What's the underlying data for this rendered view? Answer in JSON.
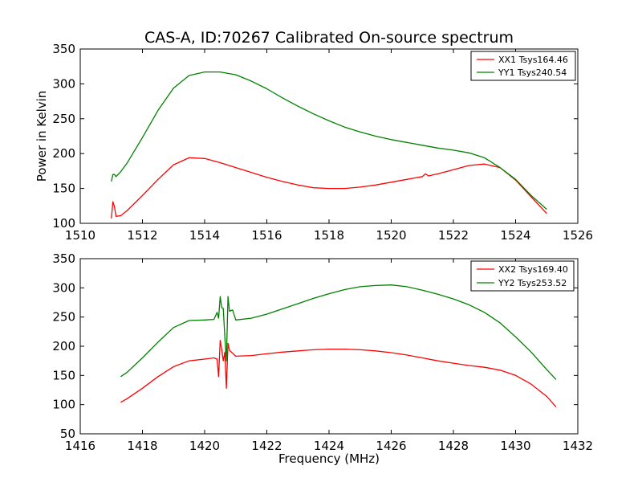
{
  "chart_data": [
    {
      "type": "line",
      "title": "CAS-A, ID:70267 Calibrated On-source spectrum",
      "xlabel": "",
      "ylabel": "Power in Kelvin",
      "xlim": [
        1510,
        1526
      ],
      "ylim": [
        100,
        350
      ],
      "xticks": [
        1510,
        1512,
        1514,
        1516,
        1518,
        1520,
        1522,
        1524,
        1526
      ],
      "yticks": [
        100,
        150,
        200,
        250,
        300,
        350
      ],
      "legend_position": "top-right",
      "series": [
        {
          "name": "XX1 Tsys164.46",
          "color": "#ff0000",
          "points": [
            [
              1511.0,
              107
            ],
            [
              1511.05,
              131
            ],
            [
              1511.1,
              124
            ],
            [
              1511.15,
              110
            ],
            [
              1511.3,
              111
            ],
            [
              1511.5,
              118
            ],
            [
              1512.0,
              140
            ],
            [
              1512.5,
              163
            ],
            [
              1513.0,
              184
            ],
            [
              1513.5,
              194
            ],
            [
              1514.0,
              193
            ],
            [
              1514.5,
              187
            ],
            [
              1515.0,
              180
            ],
            [
              1515.5,
              173
            ],
            [
              1516.0,
              166
            ],
            [
              1516.5,
              160
            ],
            [
              1517.0,
              155
            ],
            [
              1517.5,
              151
            ],
            [
              1518.0,
              150
            ],
            [
              1518.5,
              150
            ],
            [
              1519.0,
              152
            ],
            [
              1519.5,
              155
            ],
            [
              1520.0,
              159
            ],
            [
              1520.5,
              163
            ],
            [
              1521.0,
              167
            ],
            [
              1521.1,
              171
            ],
            [
              1521.2,
              168
            ],
            [
              1521.5,
              171
            ],
            [
              1522.0,
              177
            ],
            [
              1522.5,
              183
            ],
            [
              1523.0,
              185
            ],
            [
              1523.5,
              180
            ],
            [
              1524.0,
              162
            ],
            [
              1524.5,
              138
            ],
            [
              1525.0,
              114
            ]
          ]
        },
        {
          "name": "YY1 Tsys240.54",
          "color": "#008000",
          "points": [
            [
              1511.0,
              160
            ],
            [
              1511.05,
              170
            ],
            [
              1511.1,
              170
            ],
            [
              1511.15,
              167
            ],
            [
              1511.3,
              174
            ],
            [
              1511.5,
              186
            ],
            [
              1512.0,
              223
            ],
            [
              1512.5,
              262
            ],
            [
              1513.0,
              294
            ],
            [
              1513.5,
              312
            ],
            [
              1514.0,
              317
            ],
            [
              1514.5,
              317
            ],
            [
              1515.0,
              313
            ],
            [
              1515.5,
              304
            ],
            [
              1516.0,
              293
            ],
            [
              1516.5,
              280
            ],
            [
              1517.0,
              268
            ],
            [
              1517.5,
              257
            ],
            [
              1518.0,
              247
            ],
            [
              1518.5,
              238
            ],
            [
              1519.0,
              231
            ],
            [
              1519.5,
              225
            ],
            [
              1520.0,
              220
            ],
            [
              1520.5,
              216
            ],
            [
              1521.0,
              212
            ],
            [
              1521.5,
              208
            ],
            [
              1522.0,
              205
            ],
            [
              1522.5,
              201
            ],
            [
              1523.0,
              194
            ],
            [
              1523.5,
              180
            ],
            [
              1524.0,
              163
            ],
            [
              1524.5,
              140
            ],
            [
              1525.0,
              120
            ]
          ]
        }
      ]
    },
    {
      "type": "line",
      "title": "",
      "xlabel": "Frequency (MHz)",
      "ylabel": "",
      "xlim": [
        1416,
        1432
      ],
      "ylim": [
        50,
        350
      ],
      "xticks": [
        1416,
        1418,
        1420,
        1422,
        1424,
        1426,
        1428,
        1430,
        1432
      ],
      "yticks": [
        50,
        100,
        150,
        200,
        250,
        300,
        350
      ],
      "legend_position": "top-right",
      "series": [
        {
          "name": "XX2 Tsys169.40",
          "color": "#ff0000",
          "points": [
            [
              1417.3,
              104
            ],
            [
              1417.5,
              110
            ],
            [
              1418.0,
              128
            ],
            [
              1418.5,
              148
            ],
            [
              1419.0,
              165
            ],
            [
              1419.5,
              175
            ],
            [
              1420.0,
              178
            ],
            [
              1420.3,
              180
            ],
            [
              1420.4,
              178
            ],
            [
              1420.45,
              148
            ],
            [
              1420.5,
              210
            ],
            [
              1420.55,
              195
            ],
            [
              1420.6,
              175
            ],
            [
              1420.65,
              190
            ],
            [
              1420.7,
              128
            ],
            [
              1420.75,
              205
            ],
            [
              1420.8,
              193
            ],
            [
              1420.9,
              188
            ],
            [
              1421.0,
              183
            ],
            [
              1421.5,
              184
            ],
            [
              1422.0,
              187
            ],
            [
              1422.5,
              190
            ],
            [
              1423.0,
              192
            ],
            [
              1423.5,
              194
            ],
            [
              1424.0,
              195
            ],
            [
              1424.5,
              195
            ],
            [
              1425.0,
              194
            ],
            [
              1425.5,
              192
            ],
            [
              1426.0,
              189
            ],
            [
              1426.5,
              185
            ],
            [
              1427.0,
              180
            ],
            [
              1427.5,
              175
            ],
            [
              1428.0,
              171
            ],
            [
              1428.5,
              167
            ],
            [
              1429.0,
              164
            ],
            [
              1429.5,
              159
            ],
            [
              1430.0,
              150
            ],
            [
              1430.5,
              135
            ],
            [
              1431.0,
              114
            ],
            [
              1431.3,
              96
            ]
          ]
        },
        {
          "name": "YY2 Tsys253.52",
          "color": "#008000",
          "points": [
            [
              1417.3,
              148
            ],
            [
              1417.5,
              155
            ],
            [
              1418.0,
              180
            ],
            [
              1418.5,
              207
            ],
            [
              1419.0,
              232
            ],
            [
              1419.5,
              244
            ],
            [
              1420.0,
              245
            ],
            [
              1420.3,
              246
            ],
            [
              1420.4,
              258
            ],
            [
              1420.45,
              248
            ],
            [
              1420.5,
              285
            ],
            [
              1420.55,
              266
            ],
            [
              1420.6,
              265
            ],
            [
              1420.65,
              215
            ],
            [
              1420.7,
              175
            ],
            [
              1420.75,
              285
            ],
            [
              1420.8,
              260
            ],
            [
              1420.9,
              262
            ],
            [
              1421.0,
              245
            ],
            [
              1421.5,
              248
            ],
            [
              1422.0,
              255
            ],
            [
              1422.5,
              264
            ],
            [
              1423.0,
              273
            ],
            [
              1423.5,
              282
            ],
            [
              1424.0,
              290
            ],
            [
              1424.5,
              297
            ],
            [
              1425.0,
              302
            ],
            [
              1425.5,
              304
            ],
            [
              1426.0,
              305
            ],
            [
              1426.5,
              302
            ],
            [
              1427.0,
              296
            ],
            [
              1427.5,
              289
            ],
            [
              1428.0,
              281
            ],
            [
              1428.5,
              271
            ],
            [
              1429.0,
              258
            ],
            [
              1429.5,
              240
            ],
            [
              1430.0,
              216
            ],
            [
              1430.5,
              190
            ],
            [
              1431.0,
              160
            ],
            [
              1431.3,
              143
            ]
          ]
        }
      ]
    }
  ]
}
